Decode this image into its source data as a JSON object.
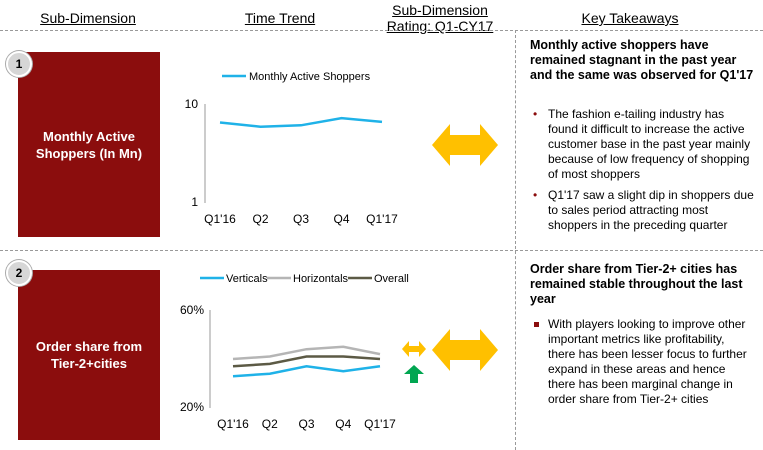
{
  "headers": {
    "sub_dimension": "Sub-Dimension",
    "time_trend": "Time Trend",
    "rating_line1": "Sub-Dimension",
    "rating_line2": "Rating: Q1-CY17",
    "key_takeaways": "Key Takeaways"
  },
  "colors": {
    "accent": "#8b0d0d",
    "arrow_yellow": "#ffc000",
    "arrow_green": "#00a651"
  },
  "rows": [
    {
      "number": "1",
      "label": "Monthly Active Shoppers (In Mn)",
      "takeaway_title": "Monthly active shoppers have remained stagnant in the past year and the same was observed for Q1'17",
      "bullets": [
        "The fashion e-tailing industry has found it difficult to increase the active customer base in the past year mainly because of low frequency of shopping of most shoppers",
        "Q1'17 saw a slight dip in shoppers due to sales period attracting most shoppers in the preceding quarter"
      ],
      "rating_icons": [
        "double-arrow-icon"
      ]
    },
    {
      "number": "2",
      "label": "Order share from Tier-2+cities",
      "takeaway_title": "Order share from Tier-2+ cities has remained stable throughout the last year",
      "bullets": [
        "With players looking to improve other important metrics like profitability, there has been lesser focus to further expand in these areas and hence there has been marginal change in order share from Tier-2+ cities"
      ],
      "rating_icons": [
        "double-arrow-icon",
        "small-double-arrow-icon",
        "up-arrow-icon"
      ]
    }
  ],
  "chart_data": [
    {
      "type": "line",
      "categories": [
        "Q1'16",
        "Q2",
        "Q3",
        "Q4",
        "Q1'17"
      ],
      "series": [
        {
          "name": "Monthly Active Shoppers",
          "values": [
            6.5,
            5.9,
            6.1,
            7.2,
            6.6
          ],
          "color": "#1fb2e8"
        }
      ],
      "ytick_labels": [
        "10",
        "1"
      ],
      "ylim": [
        1,
        10
      ],
      "yscale": "log",
      "legend": "top",
      "grid": false
    },
    {
      "type": "line",
      "categories": [
        "Q1'16",
        "Q2",
        "Q3",
        "Q4",
        "Q1'17"
      ],
      "series": [
        {
          "name": "Verticals",
          "values": [
            33,
            34,
            37,
            35,
            37
          ],
          "color": "#1fb2e8"
        },
        {
          "name": "Horizontals",
          "values": [
            40,
            41,
            44,
            45,
            42
          ],
          "color": "#b5b5b5"
        },
        {
          "name": "Overall",
          "values": [
            37,
            38,
            41,
            41,
            40
          ],
          "color": "#5c5a45"
        }
      ],
      "ytick_labels": [
        "60%",
        "20%"
      ],
      "ylim": [
        20,
        60
      ],
      "legend": "top",
      "grid": false
    }
  ]
}
